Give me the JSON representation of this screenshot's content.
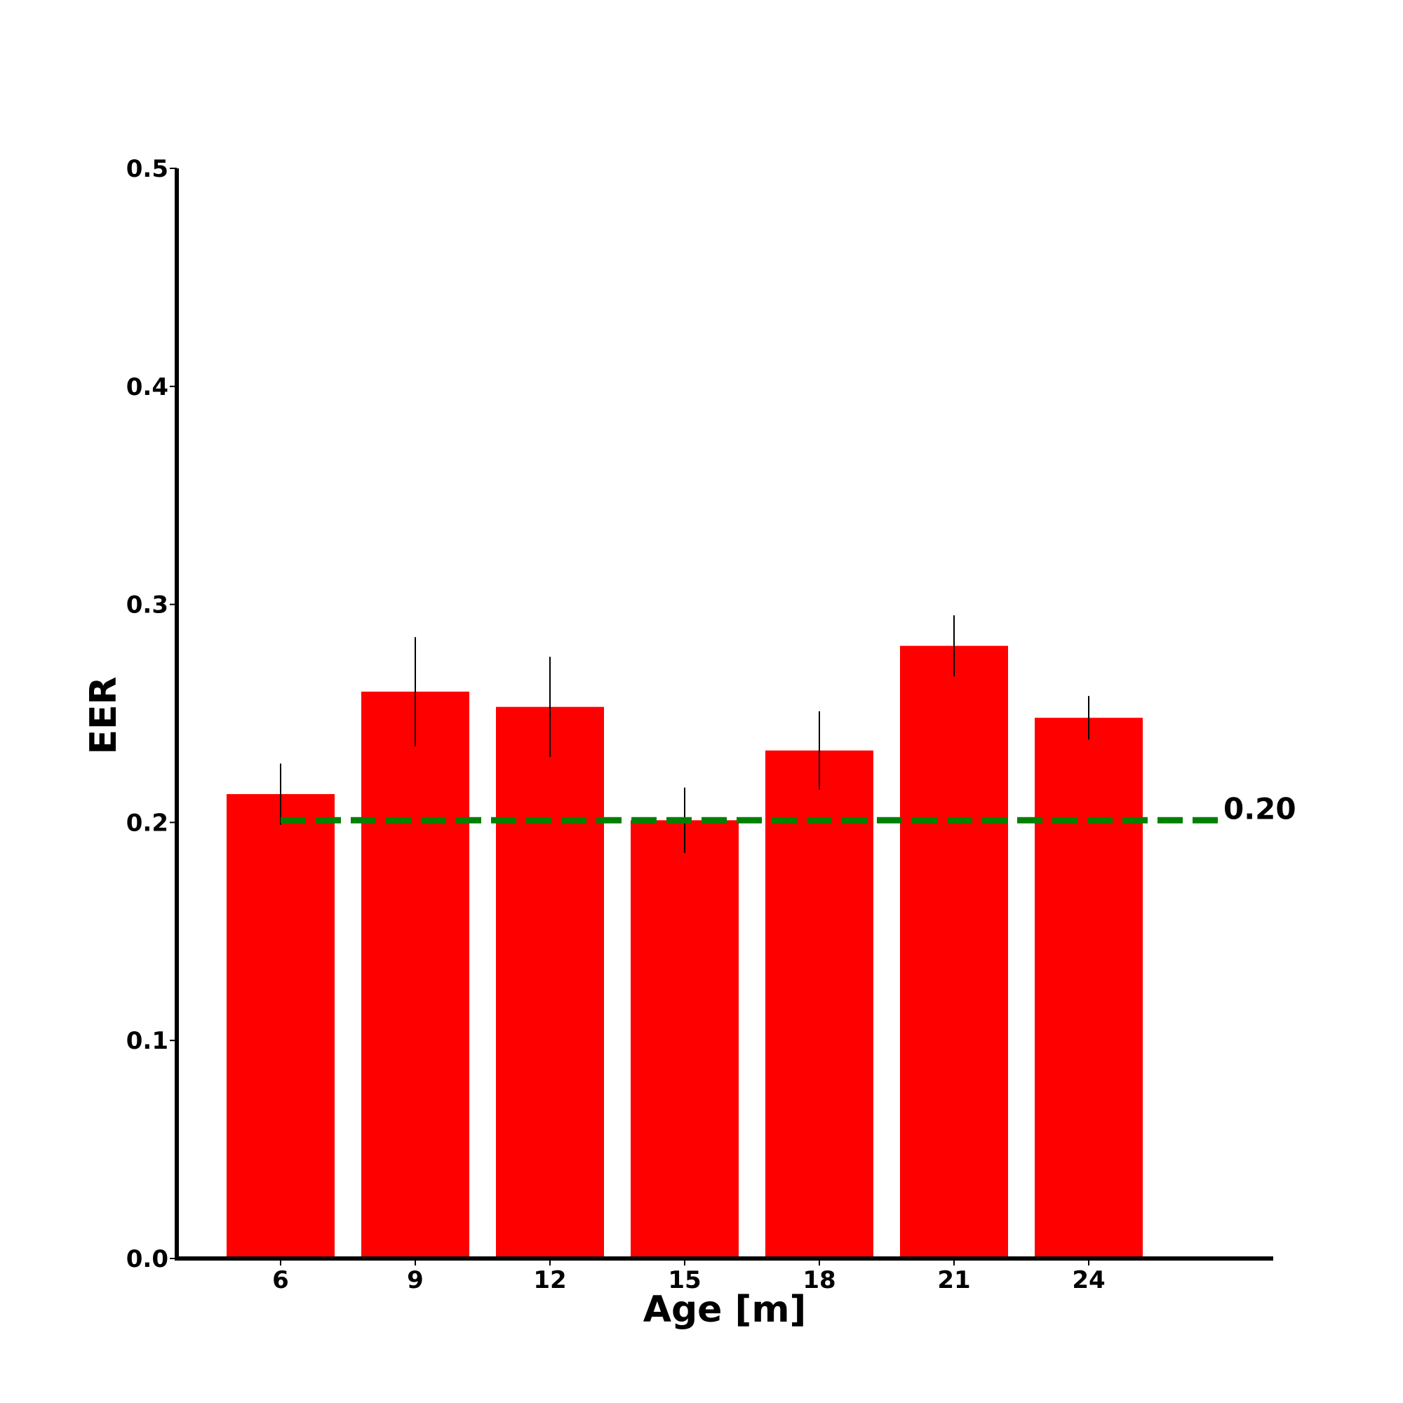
{
  "chart_data": {
    "type": "bar",
    "categories": [
      "6",
      "9",
      "12",
      "15",
      "18",
      "21",
      "24"
    ],
    "values": [
      0.213,
      0.26,
      0.253,
      0.201,
      0.233,
      0.281,
      0.248
    ],
    "errors": [
      0.014,
      0.025,
      0.023,
      0.015,
      0.018,
      0.014,
      0.01
    ],
    "xlabel": "Age [m]",
    "ylabel": "EER",
    "ylim": [
      0.0,
      0.5
    ],
    "yticks": [
      "0.0",
      "0.1",
      "0.2",
      "0.3",
      "0.4",
      "0.5"
    ],
    "reference_line": {
      "value": 0.201,
      "label": "0.20",
      "style": "dashed"
    },
    "grid": false,
    "colors": {
      "bar": "#ff0000",
      "error_bar": "#000000",
      "reference_line": "#008000",
      "axis": "#000000"
    }
  }
}
